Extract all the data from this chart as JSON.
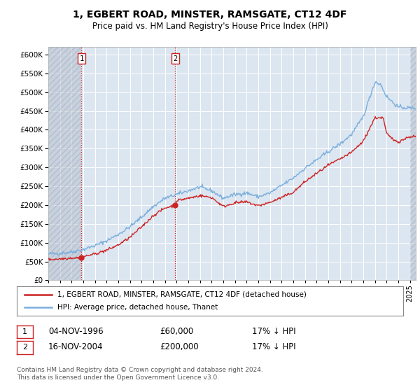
{
  "title": "1, EGBERT ROAD, MINSTER, RAMSGATE, CT12 4DF",
  "subtitle": "Price paid vs. HM Land Registry's House Price Index (HPI)",
  "background_color": "#ffffff",
  "plot_bg_color": "#dce6f0",
  "grid_color": "#ffffff",
  "hpi_color": "#7aafde",
  "price_color": "#cc2222",
  "hatch_color": "#b0b8c8",
  "sale1_date_num": 1996.846,
  "sale1_value": 60000,
  "sale2_date_num": 2004.879,
  "sale2_value": 200000,
  "legend_label_price": "1, EGBERT ROAD, MINSTER, RAMSGATE, CT12 4DF (detached house)",
  "legend_label_hpi": "HPI: Average price, detached house, Thanet",
  "note1_date": "04-NOV-1996",
  "note1_price": "£60,000",
  "note1_hpi": "17% ↓ HPI",
  "note2_date": "16-NOV-2004",
  "note2_price": "£200,000",
  "note2_hpi": "17% ↓ HPI",
  "footer": "Contains HM Land Registry data © Crown copyright and database right 2024.\nThis data is licensed under the Open Government Licence v3.0.",
  "xmin": 1994.0,
  "xmax": 2025.5,
  "ymin": 0,
  "ymax": 620000
}
